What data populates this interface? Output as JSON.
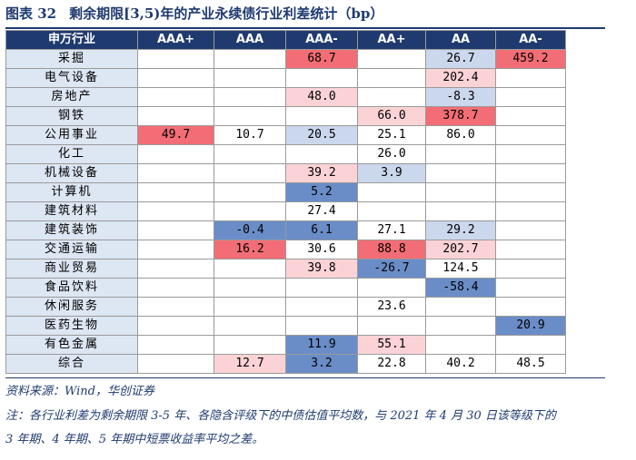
{
  "title": {
    "label": "图表 32",
    "text": "剩余期限[3,5)年的产业永续债行业利差统计（bp）"
  },
  "columns": [
    "申万行业",
    "AAA+",
    "AAA",
    "AAA-",
    "AA+",
    "AA",
    "AA-"
  ],
  "chart_data": {
    "type": "heatmap",
    "title": "剩余期限[3,5)年的产业永续债行业利差统计（bp）",
    "x_labels": [
      "AAA+",
      "AAA",
      "AAA-",
      "AA+",
      "AA",
      "AA-"
    ],
    "y_labels": [
      "采掘",
      "电气设备",
      "房地产",
      "钢铁",
      "公用事业",
      "化工",
      "机械设备",
      "计算机",
      "建筑材料",
      "建筑装饰",
      "交通运输",
      "商业贸易",
      "食品饮料",
      "休闲服务",
      "医药生物",
      "有色金属",
      "综合"
    ],
    "unit": "bp",
    "rows": [
      {
        "industry": "采掘",
        "values": [
          "",
          "",
          "68.7",
          "",
          "26.7",
          "459.2"
        ]
      },
      {
        "industry": "电气设备",
        "values": [
          "",
          "",
          "",
          "",
          "202.4",
          ""
        ]
      },
      {
        "industry": "房地产",
        "values": [
          "",
          "",
          "48.0",
          "",
          "-8.3",
          ""
        ]
      },
      {
        "industry": "钢铁",
        "values": [
          "",
          "",
          "",
          "66.0",
          "378.7",
          ""
        ]
      },
      {
        "industry": "公用事业",
        "values": [
          "49.7",
          "10.7",
          "20.5",
          "25.1",
          "86.0",
          ""
        ]
      },
      {
        "industry": "化工",
        "values": [
          "",
          "",
          "",
          "26.0",
          "",
          ""
        ]
      },
      {
        "industry": "机械设备",
        "values": [
          "",
          "",
          "39.2",
          "3.9",
          "",
          ""
        ]
      },
      {
        "industry": "计算机",
        "values": [
          "",
          "",
          "5.2",
          "",
          "",
          ""
        ]
      },
      {
        "industry": "建筑材料",
        "values": [
          "",
          "",
          "27.4",
          "",
          "",
          ""
        ]
      },
      {
        "industry": "建筑装饰",
        "values": [
          "",
          "-0.4",
          "6.1",
          "27.1",
          "29.2",
          ""
        ]
      },
      {
        "industry": "交通运输",
        "values": [
          "",
          "16.2",
          "30.6",
          "88.8",
          "202.7",
          ""
        ]
      },
      {
        "industry": "商业贸易",
        "values": [
          "",
          "",
          "39.8",
          "-26.7",
          "124.5",
          ""
        ]
      },
      {
        "industry": "食品饮料",
        "values": [
          "",
          "",
          "",
          "",
          "-58.4",
          ""
        ]
      },
      {
        "industry": "休闲服务",
        "values": [
          "",
          "",
          "",
          "23.6",
          "",
          ""
        ]
      },
      {
        "industry": "医药生物",
        "values": [
          "",
          "",
          "",
          "",
          "",
          "20.9"
        ]
      },
      {
        "industry": "有色金属",
        "values": [
          "",
          "",
          "11.9",
          "55.1",
          "",
          ""
        ]
      },
      {
        "industry": "综合",
        "values": [
          "",
          "12.7",
          "3.2",
          "22.8",
          "40.2",
          "48.5"
        ]
      }
    ],
    "cell_colors": [
      [
        "",
        "",
        "#f26d75",
        "",
        "#cbd7ec",
        "#f26d75"
      ],
      [
        "",
        "",
        "",
        "",
        "#fbd3d6",
        ""
      ],
      [
        "",
        "",
        "#fbd3d6",
        "",
        "#cbd7ec",
        ""
      ],
      [
        "",
        "",
        "",
        "#fbd3d6",
        "#f26d75",
        ""
      ],
      [
        "#f26d75",
        "",
        "#cbd7ec",
        "",
        "",
        ""
      ],
      [
        "",
        "",
        "",
        "",
        "",
        ""
      ],
      [
        "",
        "",
        "#fbd3d6",
        "#cbd7ec",
        "",
        ""
      ],
      [
        "",
        "",
        "#6a8dc8",
        "",
        "",
        ""
      ],
      [
        "",
        "",
        "",
        "",
        "",
        ""
      ],
      [
        "",
        "#6a8dc8",
        "#6a8dc8",
        "",
        "#cbd7ec",
        ""
      ],
      [
        "",
        "#f26d75",
        "",
        "#f26d75",
        "#fbd3d6",
        ""
      ],
      [
        "",
        "",
        "#fbd3d6",
        "#6a8dc8",
        "",
        ""
      ],
      [
        "",
        "",
        "",
        "",
        "#6a8dc8",
        ""
      ],
      [
        "",
        "",
        "",
        "",
        "",
        ""
      ],
      [
        "",
        "",
        "",
        "",
        "",
        "#6a8dc8"
      ],
      [
        "",
        "",
        "#6a8dc8",
        "#fbd3d6",
        "",
        ""
      ],
      [
        "",
        "#fbd3d6",
        "#6a8dc8",
        "",
        "",
        ""
      ]
    ]
  },
  "source": "资料来源：Wind，华创证券",
  "note_line1": "注：各行业利差为剩余期限 3-5 年、各隐含评级下的中债估值平均数，与 2021 年 4 月 30 日该等级下的",
  "note_line2": "3 年期、4 年期、5 年期中短票收益率平均之差。"
}
